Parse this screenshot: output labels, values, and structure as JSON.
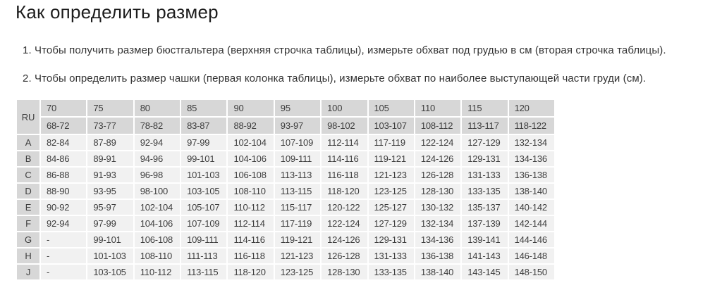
{
  "page": {
    "title": "Как определить размер",
    "instructions": [
      "1. Чтобы получить размер бюстгальтера (верхняя строчка таблицы), измерьте обхват под грудью в см (вторая строчка таблицы).",
      "2. Чтобы определить размер чашки (первая колонка таблицы), измерьте обхват по наиболее выступающей части груди (см)."
    ]
  },
  "colors": {
    "header_cell_bg": "#d7d7d7",
    "body_cell_bg": "#f1f1f1",
    "table_text": "#3d3d3d",
    "title_text": "#1d1d1d",
    "instruction_text": "#333333"
  },
  "chart_data": {
    "type": "table",
    "corner_label": "RU",
    "band_sizes": [
      "70",
      "75",
      "80",
      "85",
      "90",
      "95",
      "100",
      "105",
      "110",
      "115",
      "120"
    ],
    "underbust_ranges": [
      "68-72",
      "73-77",
      "78-82",
      "83-87",
      "88-92",
      "93-97",
      "98-102",
      "103-107",
      "108-112",
      "113-117",
      "118-122"
    ],
    "rows": [
      {
        "cup": "A",
        "values": [
          "82-84",
          "87-89",
          "92-94",
          "97-99",
          "102-104",
          "107-109",
          "112-114",
          "117-119",
          "122-124",
          "127-129",
          "132-134"
        ]
      },
      {
        "cup": "B",
        "values": [
          "84-86",
          "89-91",
          "94-96",
          "99-101",
          "104-106",
          "109-111",
          "114-116",
          "119-121",
          "124-126",
          "129-131",
          "134-136"
        ]
      },
      {
        "cup": "C",
        "values": [
          "86-88",
          "91-93",
          "96-98",
          "101-103",
          "106-108",
          "113-113",
          "116-118",
          "121-123",
          "126-128",
          "131-133",
          "136-138"
        ]
      },
      {
        "cup": "D",
        "values": [
          "88-90",
          "93-95",
          "98-100",
          "103-105",
          "108-110",
          "113-115",
          "118-120",
          "123-125",
          "128-130",
          "133-135",
          "138-140"
        ]
      },
      {
        "cup": "E",
        "values": [
          "90-92",
          "95-97",
          "102-104",
          "105-107",
          "110-112",
          "115-117",
          "120-122",
          "125-127",
          "130-132",
          "135-137",
          "140-142"
        ]
      },
      {
        "cup": "F",
        "values": [
          "92-94",
          "97-99",
          "104-106",
          "107-109",
          "112-114",
          "117-119",
          "122-124",
          "127-129",
          "132-134",
          "137-139",
          "142-144"
        ]
      },
      {
        "cup": "G",
        "values": [
          "-",
          "99-101",
          "106-108",
          "109-111",
          "114-116",
          "119-121",
          "124-126",
          "129-131",
          "134-136",
          "139-141",
          "144-146"
        ]
      },
      {
        "cup": "H",
        "values": [
          "-",
          "101-103",
          "108-110",
          "111-113",
          "116-118",
          "121-123",
          "126-128",
          "131-133",
          "136-138",
          "141-143",
          "146-148"
        ]
      },
      {
        "cup": "J",
        "values": [
          "-",
          "103-105",
          "110-112",
          "113-115",
          "118-120",
          "123-125",
          "128-130",
          "133-135",
          "138-140",
          "143-145",
          "148-150"
        ]
      }
    ]
  }
}
